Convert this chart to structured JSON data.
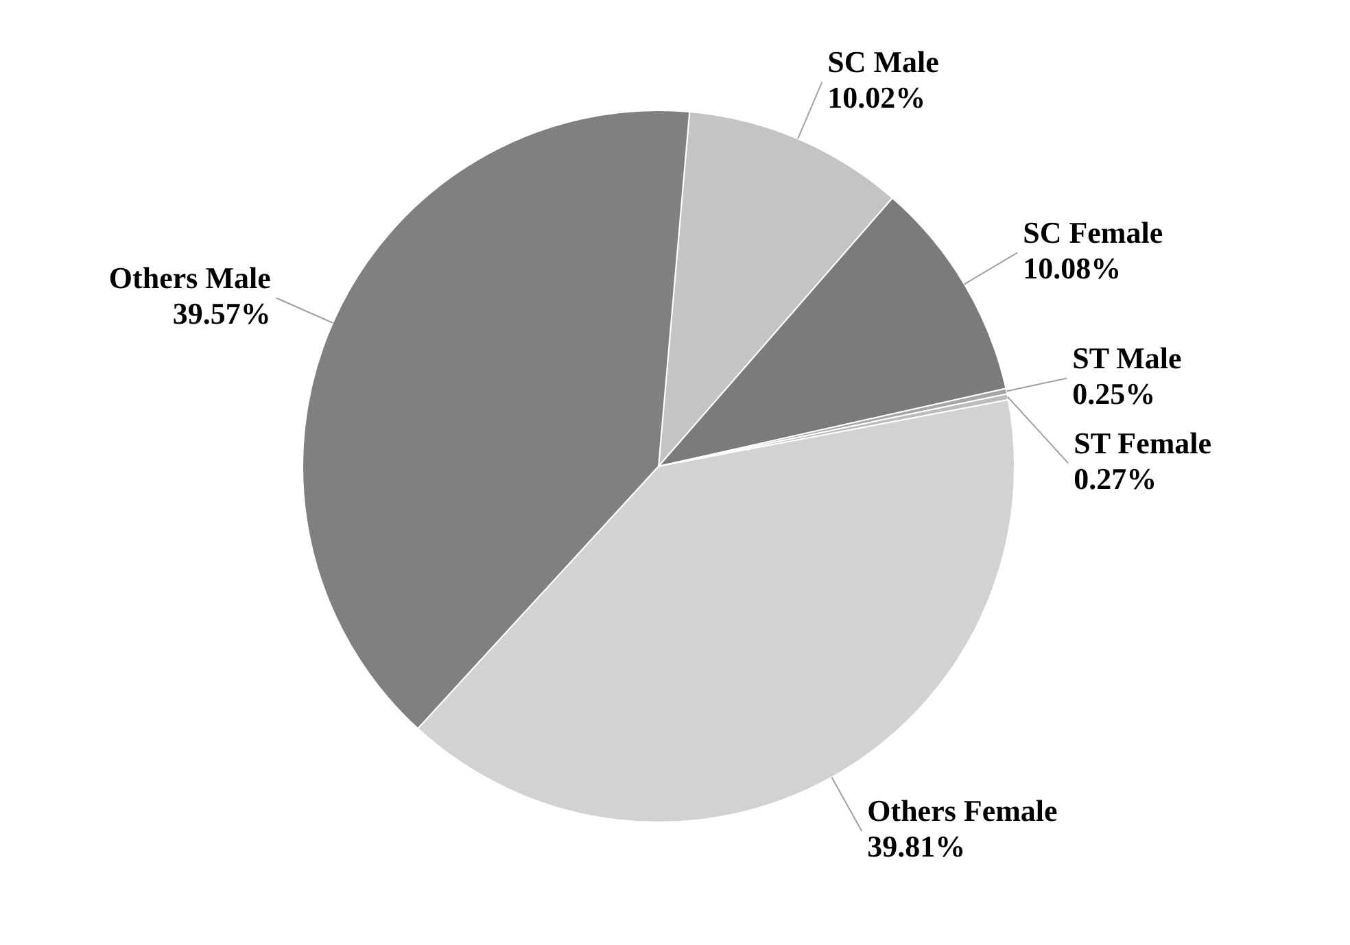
{
  "chart_data": {
    "type": "pie",
    "categories": [
      "SC Male",
      "SC Female",
      "ST Male",
      "ST Female",
      "Others Female",
      "Others Male"
    ],
    "values": [
      10.02,
      10.08,
      0.25,
      0.27,
      39.81,
      39.57
    ],
    "colors": [
      "#c4c4c4",
      "#7b7b7b",
      "#a6a6a6",
      "#bcbcbc",
      "#d2d2d2",
      "#808080"
    ],
    "value_labels": [
      "10.02%",
      "10.08%",
      "0.25%",
      "0.27%",
      "39.81%",
      "39.57%"
    ],
    "legend": false
  }
}
